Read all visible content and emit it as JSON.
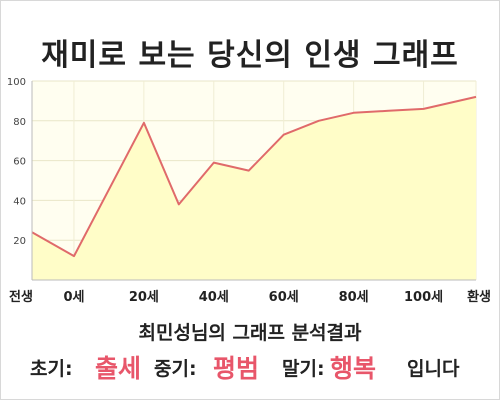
{
  "title": "재미로 보는 당신의 인생 그래프",
  "subtitle": "최민성님의 그래프 분석결과",
  "result": {
    "early_label": "초기:",
    "early_value": "출세",
    "mid_label": "중기:",
    "mid_value": "평범",
    "late_label": "말기:",
    "late_value": "행복",
    "ending": "입니다"
  },
  "colors": {
    "line": "#e06a6a",
    "fill": "#fffdc8",
    "emphasis": "#e8566a"
  },
  "chart_data": {
    "type": "area",
    "x": [
      -12,
      0,
      20,
      30,
      40,
      50,
      60,
      70,
      80,
      90,
      100,
      115
    ],
    "values": [
      24,
      12,
      79,
      38,
      59,
      55,
      73,
      80,
      84,
      85,
      86,
      92
    ],
    "xticks": [
      {
        "x": -12,
        "label": "전생"
      },
      {
        "x": 0,
        "label": "0세"
      },
      {
        "x": 20,
        "label": "20세"
      },
      {
        "x": 40,
        "label": "40세"
      },
      {
        "x": 60,
        "label": "60세"
      },
      {
        "x": 80,
        "label": "80세"
      },
      {
        "x": 100,
        "label": "100세"
      },
      {
        "x": 115,
        "label": "환생"
      }
    ],
    "yticks": [
      20,
      40,
      60,
      80,
      100
    ],
    "ylim": [
      0,
      100
    ],
    "xlim": [
      -12,
      115
    ],
    "grid": true
  }
}
